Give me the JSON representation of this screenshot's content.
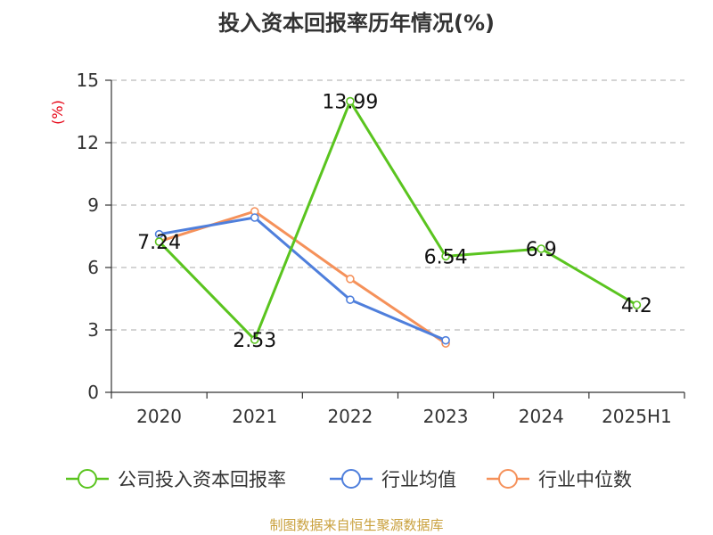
{
  "chart_data": {
    "type": "line",
    "title": "投入资本回报率历年情况(%)",
    "ylabel": "(%)",
    "categories": [
      "2020",
      "2021",
      "2022",
      "2023",
      "2024",
      "2025H1"
    ],
    "ylim": [
      0,
      15
    ],
    "yticks": [
      0,
      3,
      6,
      9,
      12,
      15
    ],
    "grid": true,
    "legend_position": "bottom",
    "series": [
      {
        "name": "公司投入资本回报率",
        "color": "#5ac41f",
        "values": [
          7.24,
          2.53,
          13.99,
          6.54,
          6.9,
          4.2
        ],
        "labels": [
          "7.24",
          "2.53",
          "13.99",
          "6.54",
          "6.9",
          "4.2"
        ]
      },
      {
        "name": "行业均值",
        "color": "#4f7fdc",
        "values": [
          7.6,
          8.4,
          4.45,
          2.5,
          null,
          null
        ]
      },
      {
        "name": "行业中位数",
        "color": "#f5915a",
        "values": [
          7.25,
          8.7,
          5.45,
          2.35,
          null,
          null
        ]
      }
    ],
    "source": "制图数据来自恒生聚源数据库"
  }
}
